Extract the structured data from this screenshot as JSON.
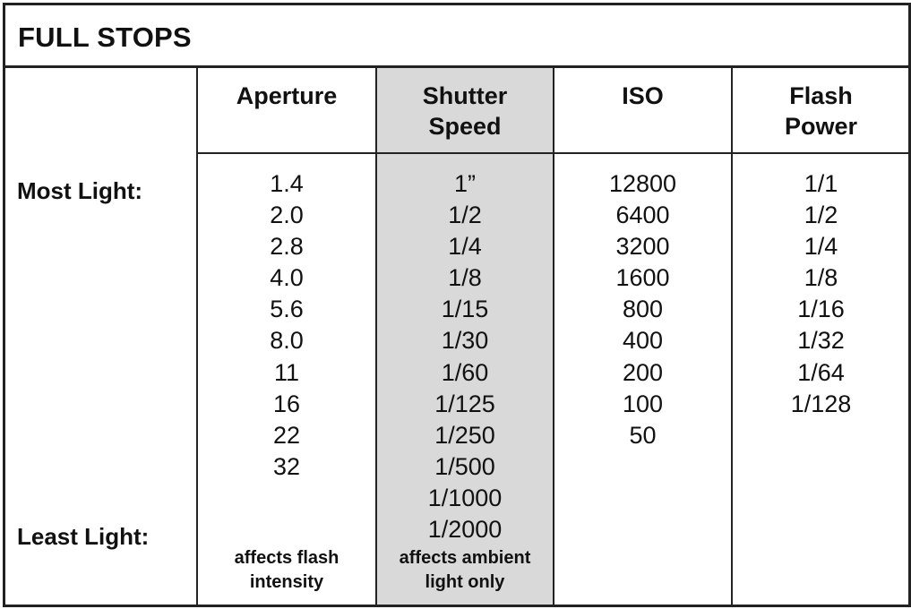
{
  "title": "FULL STOPS",
  "row_labels": {
    "most": "Most Light:",
    "least": "Least Light:"
  },
  "columns": [
    {
      "header": [
        "",
        "Aperture"
      ],
      "values": [
        "1.4",
        "2.0",
        "2.8",
        "4.0",
        "5.6",
        "8.0",
        "11",
        "16",
        "22",
        "32"
      ],
      "note": [
        "affects flash",
        "intensity"
      ]
    },
    {
      "header": [
        "Shutter",
        "Speed"
      ],
      "values": [
        "1”",
        "1/2",
        "1/4",
        "1/8",
        "1/15",
        "1/30",
        "1/60",
        "1/125",
        "1/250",
        "1/500",
        "1/1000",
        "1/2000"
      ],
      "note": [
        "affects ambient",
        "light only"
      ]
    },
    {
      "header": [
        "",
        "ISO"
      ],
      "values": [
        "12800",
        "6400",
        "3200",
        "1600",
        "800",
        "400",
        "200",
        "100",
        "50"
      ],
      "note": [
        "",
        ""
      ]
    },
    {
      "header": [
        "Flash",
        "Power"
      ],
      "values": [
        "1/1",
        "1/2",
        "1/4",
        "1/8",
        "1/16",
        "1/32",
        "1/64",
        "1/128"
      ],
      "note": [
        "",
        ""
      ]
    }
  ],
  "colors": {
    "border": "#222222",
    "highlight_column": "#d9d9d9"
  }
}
